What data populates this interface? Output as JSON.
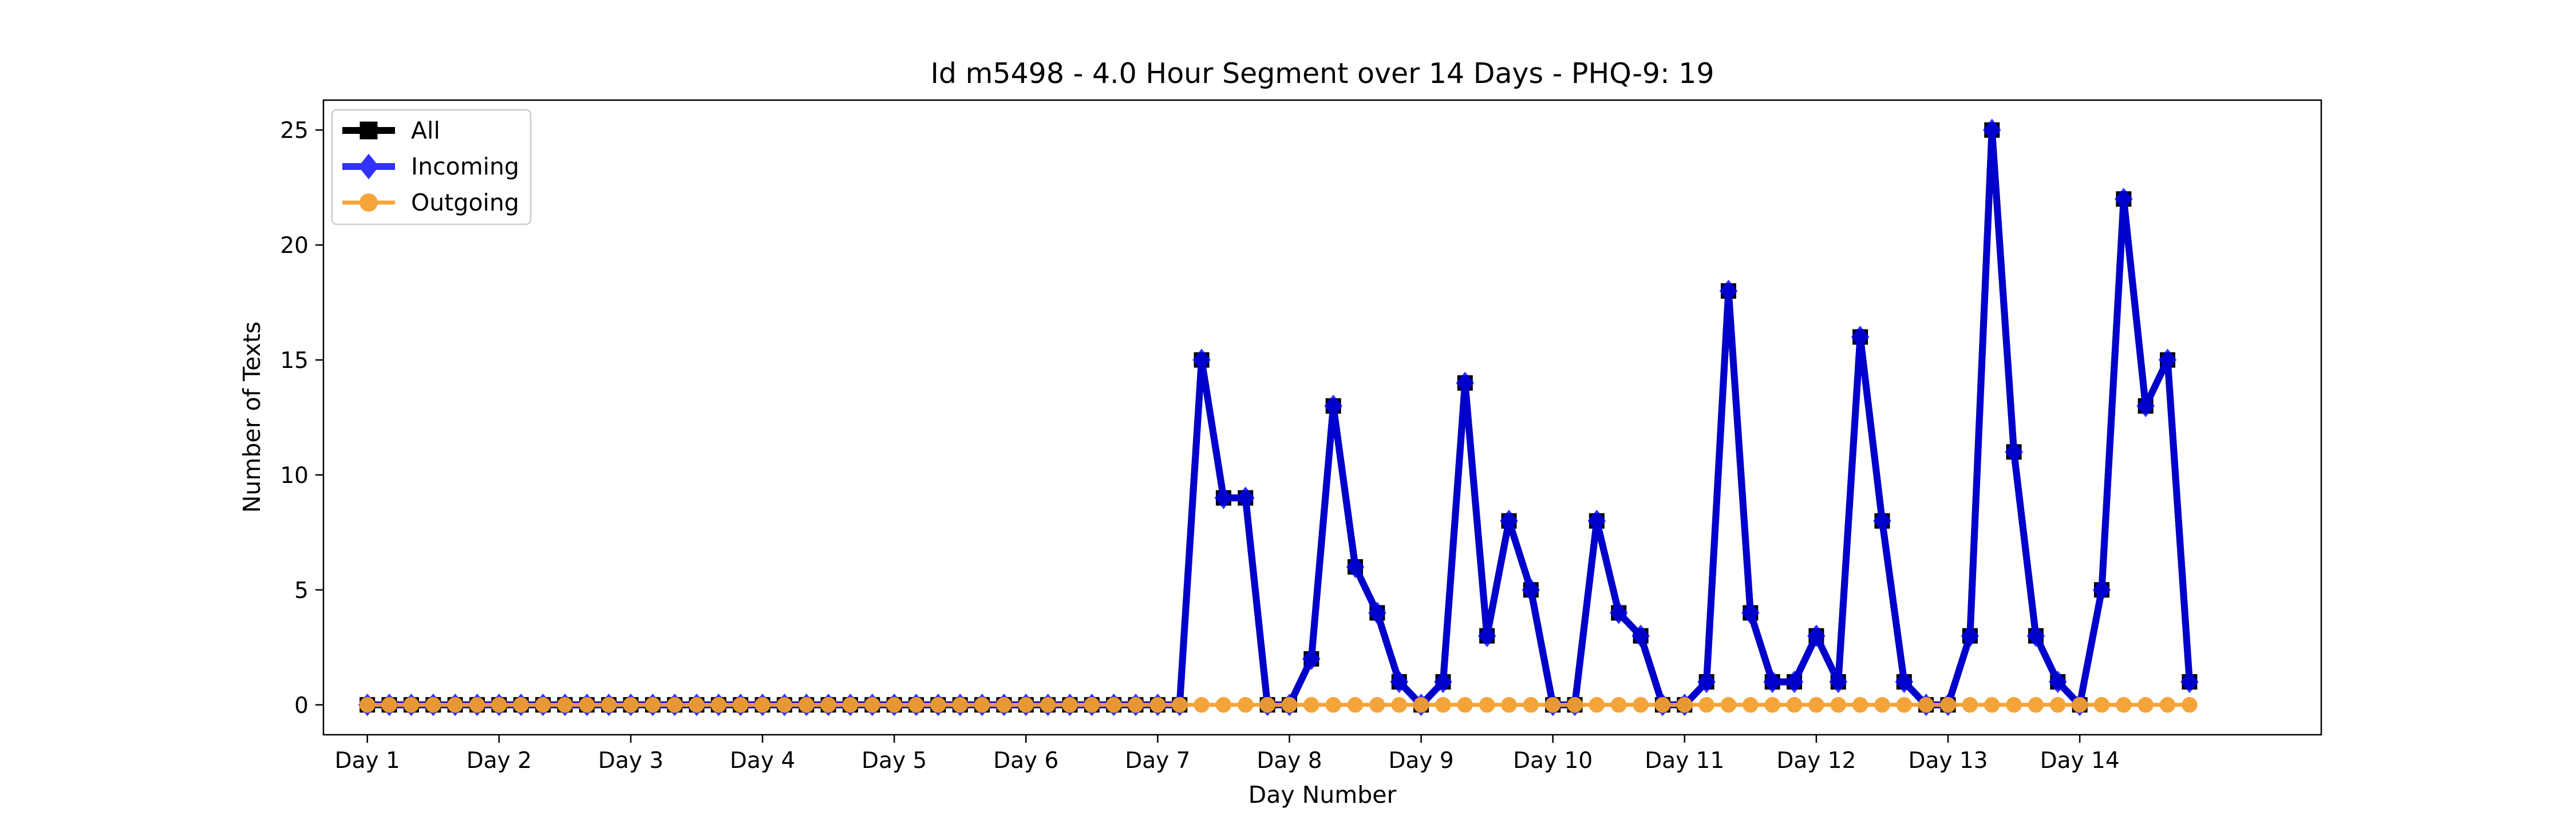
{
  "chart_data": {
    "type": "line",
    "title": "Id m5498 - 4.0 Hour Segment over 14 Days - PHQ-9: 19",
    "xlabel": "Day Number",
    "ylabel": "Number of Texts",
    "ylim": [
      -1.3,
      26.3
    ],
    "xlim": [
      -2,
      89
    ],
    "yticks": [
      0,
      5,
      10,
      15,
      20,
      25
    ],
    "xticks": [
      {
        "x": 0,
        "label": "Day 1"
      },
      {
        "x": 6,
        "label": "Day 2"
      },
      {
        "x": 12,
        "label": "Day 3"
      },
      {
        "x": 18,
        "label": "Day 4"
      },
      {
        "x": 24,
        "label": "Day 5"
      },
      {
        "x": 30,
        "label": "Day 6"
      },
      {
        "x": 36,
        "label": "Day 7"
      },
      {
        "x": 42,
        "label": "Day 8"
      },
      {
        "x": 48,
        "label": "Day 9"
      },
      {
        "x": 54,
        "label": "Day 10"
      },
      {
        "x": 60,
        "label": "Day 11"
      },
      {
        "x": 66,
        "label": "Day 12"
      },
      {
        "x": 72,
        "label": "Day 13"
      },
      {
        "x": 78,
        "label": "Day 14"
      }
    ],
    "grid": false,
    "legend_position": "top-left",
    "series": [
      {
        "name": "All",
        "color": "#000000",
        "marker": "square",
        "values": [
          0,
          0,
          0,
          0,
          0,
          0,
          0,
          0,
          0,
          0,
          0,
          0,
          0,
          0,
          0,
          0,
          0,
          0,
          0,
          0,
          0,
          0,
          0,
          0,
          0,
          0,
          0,
          0,
          0,
          0,
          0,
          0,
          0,
          0,
          0,
          0,
          0,
          0,
          15,
          9,
          9,
          0,
          0,
          2,
          13,
          6,
          4,
          1,
          0,
          1,
          14,
          3,
          8,
          5,
          0,
          0,
          8,
          4,
          3,
          0,
          0,
          1,
          18,
          4,
          1,
          1,
          3,
          1,
          16,
          8,
          1,
          0,
          0,
          3,
          25,
          11,
          3,
          1,
          0,
          5,
          22,
          13,
          15,
          1
        ]
      },
      {
        "name": "Incoming",
        "color": "#0000ff",
        "marker": "diamond",
        "values": [
          0,
          0,
          0,
          0,
          0,
          0,
          0,
          0,
          0,
          0,
          0,
          0,
          0,
          0,
          0,
          0,
          0,
          0,
          0,
          0,
          0,
          0,
          0,
          0,
          0,
          0,
          0,
          0,
          0,
          0,
          0,
          0,
          0,
          0,
          0,
          0,
          0,
          0,
          15,
          9,
          9,
          0,
          0,
          2,
          13,
          6,
          4,
          1,
          0,
          1,
          14,
          3,
          8,
          5,
          0,
          0,
          8,
          4,
          3,
          0,
          0,
          1,
          18,
          4,
          1,
          1,
          3,
          1,
          16,
          8,
          1,
          0,
          0,
          3,
          25,
          11,
          3,
          1,
          0,
          5,
          22,
          13,
          15,
          1
        ]
      },
      {
        "name": "Outgoing",
        "color": "#f5a030",
        "marker": "circle",
        "values": [
          0,
          0,
          0,
          0,
          0,
          0,
          0,
          0,
          0,
          0,
          0,
          0,
          0,
          0,
          0,
          0,
          0,
          0,
          0,
          0,
          0,
          0,
          0,
          0,
          0,
          0,
          0,
          0,
          0,
          0,
          0,
          0,
          0,
          0,
          0,
          0,
          0,
          0,
          0,
          0,
          0,
          0,
          0,
          0,
          0,
          0,
          0,
          0,
          0,
          0,
          0,
          0,
          0,
          0,
          0,
          0,
          0,
          0,
          0,
          0,
          0,
          0,
          0,
          0,
          0,
          0,
          0,
          0,
          0,
          0,
          0,
          0,
          0,
          0,
          0,
          0,
          0,
          0,
          0,
          0,
          0,
          0,
          0,
          0
        ]
      }
    ]
  }
}
